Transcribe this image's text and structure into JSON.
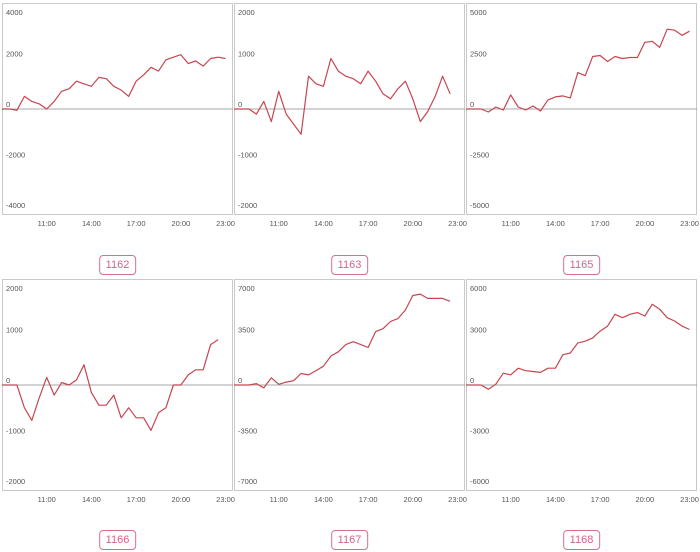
{
  "chart_data": [
    {
      "type": "line",
      "label": "1162",
      "ylim": [
        -4000,
        4000
      ],
      "yticks": [
        4000,
        2000,
        0,
        -2000,
        -4000
      ],
      "xticks": [
        "11:00",
        "14:00",
        "17:00",
        "20:00",
        "23:00"
      ],
      "x": [
        8,
        8.5,
        9,
        9.5,
        10,
        10.5,
        11,
        11.5,
        12,
        12.5,
        13,
        13.5,
        14,
        14.5,
        15,
        15.5,
        16,
        16.5,
        17,
        17.5,
        18,
        18.5,
        19,
        19.5,
        20,
        20.5,
        21,
        21.5,
        22,
        22.5,
        23
      ],
      "series": [
        {
          "values": [
            0,
            0,
            -50,
            500,
            300,
            200,
            0,
            300,
            700,
            800,
            1100,
            1000,
            900,
            1250,
            1200,
            900,
            750,
            500,
            1100,
            1350,
            1650,
            1500,
            1950,
            2050,
            2150,
            1800,
            1900,
            1700,
            2000,
            2050,
            2000
          ],
          "color": "#c8454f"
        }
      ]
    },
    {
      "type": "line",
      "label": "1163",
      "ylim": [
        -2000,
        2000
      ],
      "yticks": [
        2000,
        1000,
        0,
        -1000,
        -2000
      ],
      "xticks": [
        "11:00",
        "14:00",
        "17:00",
        "20:00",
        "23:00"
      ],
      "x": [
        8,
        8.5,
        9,
        9.5,
        10,
        10.5,
        11,
        11.5,
        12,
        12.5,
        13,
        13.5,
        14,
        14.5,
        15,
        15.5,
        16,
        16.5,
        17,
        17.5,
        18,
        18.5,
        19,
        19.5,
        20,
        20.5,
        21,
        21.5,
        22,
        22.5
      ],
      "series": [
        {
          "values": [
            0,
            0,
            0,
            -100,
            150,
            -250,
            350,
            -100,
            -300,
            -500,
            650,
            500,
            450,
            1000,
            750,
            650,
            600,
            500,
            750,
            550,
            300,
            200,
            400,
            550,
            200,
            -250,
            -50,
            250,
            650,
            300
          ],
          "color": "#c8454f"
        }
      ]
    },
    {
      "type": "line",
      "label": "1165",
      "ylim": [
        -5000,
        5000
      ],
      "yticks": [
        5000,
        2500,
        0,
        -2500,
        -5000
      ],
      "xticks": [
        "11:00",
        "14:00",
        "17:00",
        "20:00",
        "23:00"
      ],
      "x": [
        8,
        8.5,
        9,
        9.5,
        10,
        10.5,
        11,
        11.5,
        12,
        12.5,
        13,
        13.5,
        14,
        14.5,
        15,
        15.5,
        16,
        16.5,
        17,
        17.5,
        18,
        18.5,
        19,
        19.5,
        20,
        20.5,
        21,
        21.5,
        22,
        22.5,
        23
      ],
      "series": [
        {
          "values": [
            0,
            0,
            0,
            -150,
            100,
            -50,
            700,
            100,
            -50,
            150,
            -100,
            450,
            600,
            650,
            550,
            1800,
            1650,
            2600,
            2650,
            2350,
            2600,
            2500,
            2550,
            2550,
            3300,
            3350,
            3050,
            3950,
            3900,
            3650,
            3850
          ],
          "color": "#c8454f"
        }
      ]
    },
    {
      "type": "line",
      "label": "1166",
      "ylim": [
        -2000,
        2000
      ],
      "yticks": [
        2000,
        1000,
        0,
        -1000,
        -2000
      ],
      "xticks": [
        "11:00",
        "14:00",
        "17:00",
        "20:00",
        "23:00"
      ],
      "x": [
        8,
        8.5,
        9,
        9.5,
        10,
        10.5,
        11,
        11.5,
        12,
        12.5,
        13,
        13.5,
        14,
        14.5,
        15,
        15.5,
        16,
        16.5,
        17,
        17.5,
        18,
        18.5,
        19,
        19.5,
        20,
        20.5,
        21,
        21.5,
        22,
        22.5
      ],
      "series": [
        {
          "values": [
            0,
            0,
            0,
            -450,
            -700,
            -250,
            150,
            -200,
            50,
            0,
            100,
            400,
            -150,
            -400,
            -400,
            -200,
            -650,
            -450,
            -650,
            -650,
            -900,
            -550,
            -450,
            0,
            0,
            200,
            300,
            300,
            800,
            900
          ],
          "color": "#c8454f"
        }
      ]
    },
    {
      "type": "line",
      "label": "1167",
      "ylim": [
        -7000,
        7000
      ],
      "yticks": [
        7000,
        3500,
        0,
        -3500,
        -7000
      ],
      "xticks": [
        "11:00",
        "14:00",
        "17:00",
        "20:00",
        "23:00"
      ],
      "x": [
        8,
        8.5,
        9,
        9.5,
        10,
        10.5,
        11,
        11.5,
        12,
        12.5,
        13,
        13.5,
        14,
        14.5,
        15,
        15.5,
        16,
        16.5,
        17,
        17.5,
        18,
        18.5,
        19,
        19.5,
        20,
        20.5,
        21,
        21.5,
        22,
        22.5
      ],
      "series": [
        {
          "values": [
            0,
            0,
            0,
            100,
            -200,
            500,
            50,
            200,
            300,
            800,
            700,
            1000,
            1300,
            2000,
            2300,
            2800,
            3000,
            2800,
            2600,
            3700,
            3900,
            4400,
            4600,
            5200,
            6200,
            6300,
            6000,
            6000,
            6000,
            5800
          ],
          "color": "#c8454f"
        }
      ]
    },
    {
      "type": "line",
      "label": "1168",
      "ylim": [
        -6000,
        6000
      ],
      "yticks": [
        6000,
        3000,
        0,
        -3000,
        -6000
      ],
      "xticks": [
        "11:00",
        "14:00",
        "17:00",
        "20:00",
        "23:00"
      ],
      "x": [
        8,
        8.5,
        9,
        9.5,
        10,
        10.5,
        11,
        11.5,
        12,
        12.5,
        13,
        13.5,
        14,
        14.5,
        15,
        15.5,
        16,
        16.5,
        17,
        17.5,
        18,
        18.5,
        19,
        19.5,
        20,
        20.5,
        21,
        21.5,
        22,
        22.5,
        23
      ],
      "series": [
        {
          "values": [
            0,
            0,
            0,
            -250,
            50,
            700,
            600,
            1000,
            850,
            800,
            750,
            1000,
            1000,
            1800,
            1900,
            2500,
            2600,
            2800,
            3200,
            3500,
            4200,
            4000,
            4200,
            4300,
            4100,
            4800,
            4500,
            4000,
            3800,
            3500,
            3300
          ],
          "color": "#c8454f"
        }
      ]
    }
  ]
}
